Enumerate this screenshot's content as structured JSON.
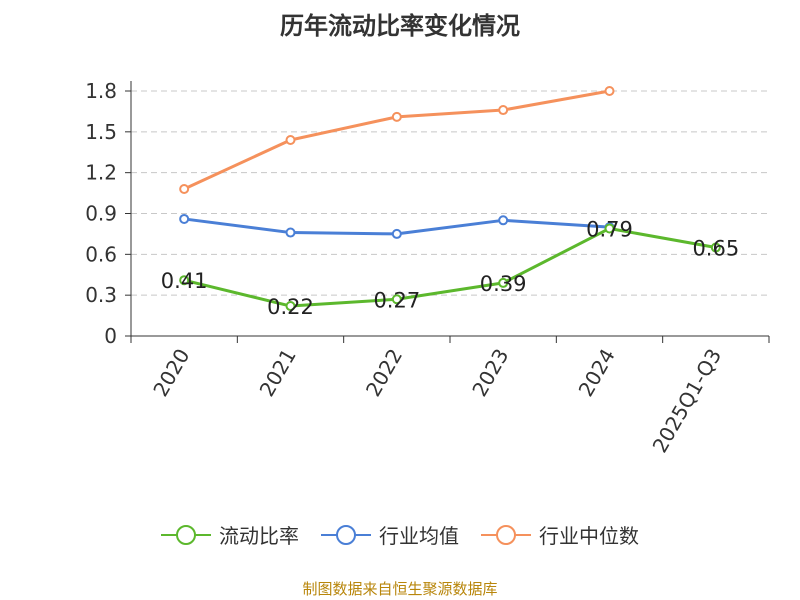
{
  "chart_data": {
    "type": "line",
    "title": "历年流动比率变化情况",
    "categories": [
      "2020",
      "2021",
      "2022",
      "2023",
      "2024",
      "2025Q1-Q3"
    ],
    "ylim": [
      0,
      1.8
    ],
    "yticks": [
      "0",
      "0.3",
      "0.6",
      "0.9",
      "1.2",
      "1.5",
      "1.8"
    ],
    "grid": true,
    "legend_position": "bottom",
    "series": [
      {
        "name": "流动比率",
        "color": "#5cb82d",
        "values": [
          0.41,
          0.22,
          0.27,
          0.39,
          0.79,
          0.65
        ],
        "labels": [
          "0.41",
          "0.22",
          "0.27",
          "0.39",
          "0.79",
          "0.65"
        ]
      },
      {
        "name": "行业均值",
        "color": "#4a7fd6",
        "values": [
          0.86,
          0.76,
          0.75,
          0.85,
          0.8,
          null
        ]
      },
      {
        "name": "行业中位数",
        "color": "#f5915c",
        "values": [
          1.08,
          1.44,
          1.61,
          1.66,
          1.8,
          null
        ]
      }
    ]
  },
  "source": "制图数据来自恒生聚源数据库"
}
